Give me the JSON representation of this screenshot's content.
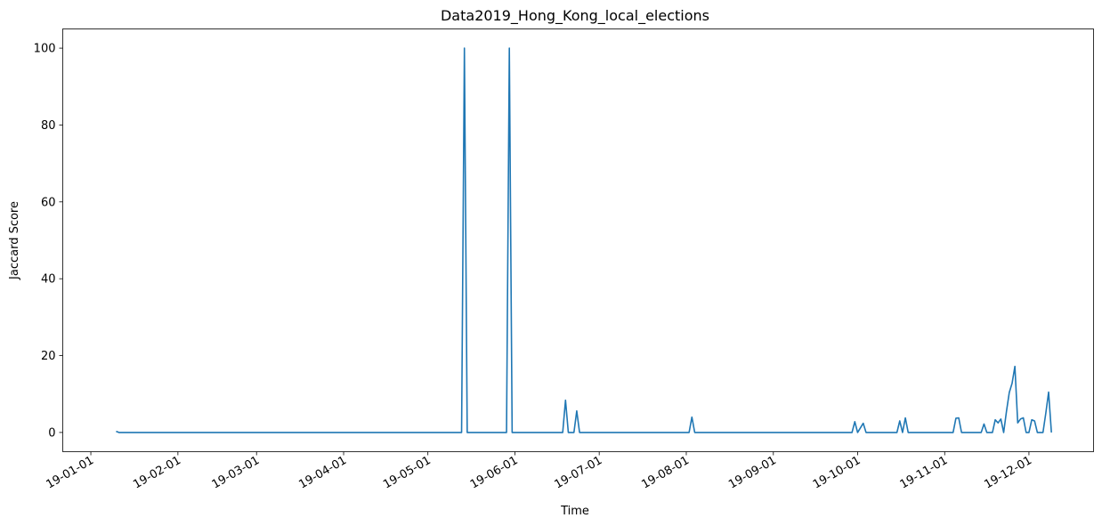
{
  "chart_data": {
    "type": "line",
    "title": "Data2019_Hong_Kong_local_elections",
    "xlabel": "Time",
    "ylabel": "Jaccard Score",
    "xlim": [
      "2018-12-22",
      "2019-12-24"
    ],
    "ylim": [
      -5,
      105
    ],
    "grid": false,
    "line_color": "#1f77b4",
    "x_ticks": [
      {
        "date": "2019-01-01",
        "label": "19-01-01"
      },
      {
        "date": "2019-02-01",
        "label": "19-02-01"
      },
      {
        "date": "2019-03-01",
        "label": "19-03-01"
      },
      {
        "date": "2019-04-01",
        "label": "19-04-01"
      },
      {
        "date": "2019-05-01",
        "label": "19-05-01"
      },
      {
        "date": "2019-06-01",
        "label": "19-06-01"
      },
      {
        "date": "2019-07-01",
        "label": "19-07-01"
      },
      {
        "date": "2019-08-01",
        "label": "19-08-01"
      },
      {
        "date": "2019-09-01",
        "label": "19-09-01"
      },
      {
        "date": "2019-10-01",
        "label": "19-10-01"
      },
      {
        "date": "2019-11-01",
        "label": "19-11-01"
      },
      {
        "date": "2019-12-01",
        "label": "19-12-01"
      }
    ],
    "y_ticks": [
      {
        "value": 0,
        "label": "0"
      },
      {
        "value": 20,
        "label": "20"
      },
      {
        "value": 40,
        "label": "40"
      },
      {
        "value": 60,
        "label": "60"
      },
      {
        "value": 80,
        "label": "80"
      },
      {
        "value": 100,
        "label": "100"
      }
    ],
    "series": [
      {
        "points": [
          [
            "2019-01-10",
            0.3
          ],
          [
            "2019-01-11",
            0
          ],
          [
            "2019-05-13",
            0
          ],
          [
            "2019-05-14",
            100
          ],
          [
            "2019-05-15",
            0
          ],
          [
            "2019-05-29",
            0
          ],
          [
            "2019-05-30",
            100
          ],
          [
            "2019-05-31",
            0
          ],
          [
            "2019-06-18",
            0
          ],
          [
            "2019-06-19",
            8.4
          ],
          [
            "2019-06-20",
            0
          ],
          [
            "2019-06-22",
            0
          ],
          [
            "2019-06-23",
            5.6
          ],
          [
            "2019-06-24",
            0
          ],
          [
            "2019-08-02",
            0
          ],
          [
            "2019-08-03",
            4
          ],
          [
            "2019-08-04",
            0
          ],
          [
            "2019-09-29",
            0
          ],
          [
            "2019-09-30",
            2.8
          ],
          [
            "2019-10-01",
            0
          ],
          [
            "2019-10-03",
            2.4
          ],
          [
            "2019-10-04",
            0
          ],
          [
            "2019-10-15",
            0
          ],
          [
            "2019-10-16",
            3
          ],
          [
            "2019-10-17",
            0
          ],
          [
            "2019-10-18",
            3.8
          ],
          [
            "2019-10-19",
            0
          ],
          [
            "2019-11-04",
            0
          ],
          [
            "2019-11-05",
            3.7
          ],
          [
            "2019-11-06",
            3.8
          ],
          [
            "2019-11-07",
            0
          ],
          [
            "2019-11-14",
            0
          ],
          [
            "2019-11-15",
            2.2
          ],
          [
            "2019-11-16",
            0
          ],
          [
            "2019-11-18",
            0
          ],
          [
            "2019-11-19",
            3.3
          ],
          [
            "2019-11-20",
            2.5
          ],
          [
            "2019-11-21",
            3.5
          ],
          [
            "2019-11-22",
            0
          ],
          [
            "2019-11-23",
            5.5
          ],
          [
            "2019-11-24",
            10.4
          ],
          [
            "2019-11-25",
            12.8
          ],
          [
            "2019-11-26",
            17.2
          ],
          [
            "2019-11-27",
            2.5
          ],
          [
            "2019-11-28",
            3.5
          ],
          [
            "2019-11-29",
            3.8
          ],
          [
            "2019-11-30",
            0
          ],
          [
            "2019-12-01",
            0
          ],
          [
            "2019-12-02",
            3.3
          ],
          [
            "2019-12-03",
            3
          ],
          [
            "2019-12-04",
            0
          ],
          [
            "2019-12-06",
            0
          ],
          [
            "2019-12-07",
            5
          ],
          [
            "2019-12-08",
            10.5
          ],
          [
            "2019-12-09",
            0
          ]
        ]
      }
    ]
  }
}
